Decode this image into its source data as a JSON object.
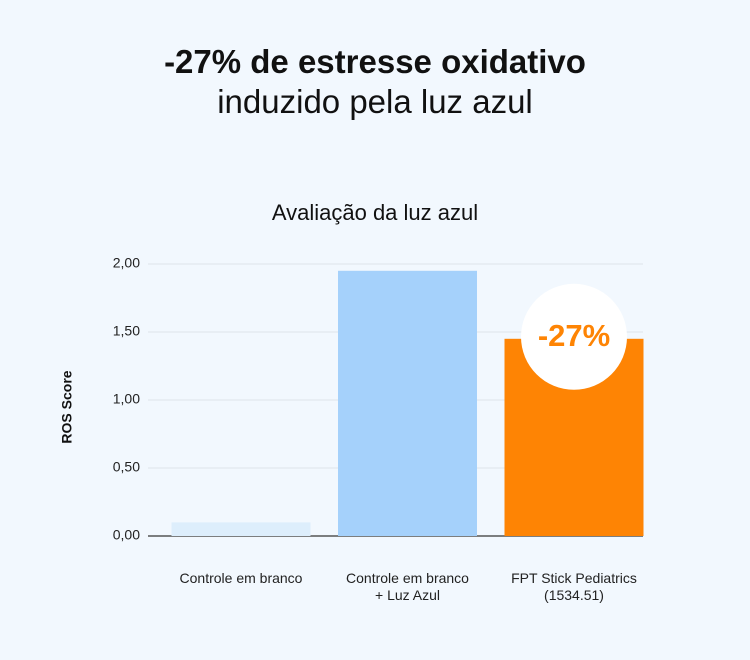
{
  "headline": {
    "line1": "-27% de estresse oxidativo",
    "line2": "induzido pela luz azul"
  },
  "colors": {
    "background": "#f2f8fe",
    "bar_blank": "#ddeefc",
    "bar_blue_light": "#a5d1fb",
    "bar_product": "#fe8404",
    "grid": "#dde3ea",
    "badge_bg": "#ffffff",
    "badge_text": "#fe8404"
  },
  "chart_data": {
    "type": "bar",
    "title": "Avaliação da luz azul",
    "ylabel": "ROS Score",
    "xlabel": "",
    "ylim": [
      0,
      2
    ],
    "yticks": [
      0,
      0.5,
      1,
      1.5,
      2
    ],
    "ytick_labels": [
      "0,00",
      "0,50",
      "1,00",
      "1,50",
      "2,00"
    ],
    "grid": true,
    "categories": [
      [
        "Controle em branco"
      ],
      [
        "Controle em branco",
        "+ Luz Azul"
      ],
      [
        "FPT Stick Pediatrics",
        "(1534.51)"
      ]
    ],
    "values": [
      0.1,
      1.95,
      1.45
    ],
    "bar_colors": [
      "#ddeefc",
      "#a5d1fb",
      "#fe8404"
    ],
    "annotation": {
      "text": "-27%",
      "bar_index": 2
    }
  }
}
